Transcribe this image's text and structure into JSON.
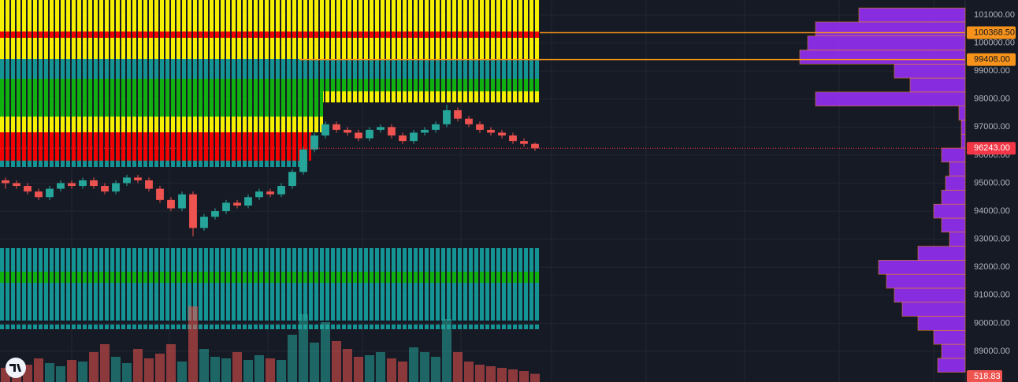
{
  "chart_data": {
    "type": "candlestick",
    "ylim": [
      87904,
      101534
    ],
    "yticks": [
      {
        "value": 89000,
        "label": "89000.00"
      },
      {
        "value": 90000,
        "label": "90000.00"
      },
      {
        "value": 91000,
        "label": "91000.00"
      },
      {
        "value": 92000,
        "label": "92000.00"
      },
      {
        "value": 93000,
        "label": "93000.00"
      },
      {
        "value": 94000,
        "label": "94000.00"
      },
      {
        "value": 95000,
        "label": "95000.00"
      },
      {
        "value": 96000,
        "label": "96000.00"
      },
      {
        "value": 97000,
        "label": "97000.00"
      },
      {
        "value": 98000,
        "label": "98000.00"
      },
      {
        "value": 99000,
        "label": "99000.00"
      },
      {
        "value": 100000,
        "label": "100000.00"
      },
      {
        "value": 101000,
        "label": "101000.00"
      }
    ],
    "grid": true,
    "up_color": "#26a69a",
    "down_color": "#ef5350",
    "open": [
      95100,
      95000,
      94900,
      94700,
      94500,
      94800,
      95000,
      94900,
      95100,
      94900,
      94700,
      95000,
      95200,
      95100,
      94800,
      94400,
      94100,
      94600,
      93400,
      93800,
      94000,
      94300,
      94200,
      94500,
      94700,
      94600,
      94900,
      95400,
      96200,
      96700,
      97100,
      96900,
      96800,
      96600,
      96900,
      97000,
      96700,
      96500,
      96800,
      96900,
      97100,
      97600,
      97300,
      97100,
      96900,
      96800,
      96700,
      96500,
      96400
    ],
    "high": [
      95200,
      95100,
      95000,
      94800,
      94900,
      95100,
      95100,
      95200,
      95200,
      95000,
      95100,
      95300,
      95300,
      95200,
      94900,
      94500,
      94700,
      94700,
      93900,
      94100,
      94400,
      94400,
      94600,
      94800,
      94800,
      95000,
      95500,
      96300,
      96800,
      97200,
      97200,
      97000,
      96900,
      97000,
      97100,
      97100,
      96800,
      96900,
      97000,
      97200,
      97800,
      97700,
      97400,
      97200,
      97000,
      96900,
      96800,
      96600,
      96450
    ],
    "low": [
      94800,
      94800,
      94600,
      94400,
      94400,
      94700,
      94800,
      94800,
      94800,
      94600,
      94600,
      94900,
      95000,
      94700,
      94300,
      94000,
      94000,
      93100,
      93300,
      93700,
      93900,
      94100,
      94100,
      94400,
      94500,
      94500,
      94800,
      95300,
      96100,
      96600,
      96800,
      96700,
      96500,
      96500,
      96800,
      96600,
      96400,
      96400,
      96700,
      96800,
      97000,
      97200,
      97000,
      96800,
      96700,
      96600,
      96400,
      96300,
      96150
    ],
    "close": [
      95000,
      94900,
      94700,
      94500,
      94800,
      95000,
      94900,
      95100,
      94900,
      94700,
      95000,
      95200,
      95100,
      94800,
      94400,
      94100,
      94600,
      93400,
      93800,
      94000,
      94300,
      94200,
      94500,
      94700,
      94600,
      94900,
      95400,
      96200,
      96700,
      97100,
      96900,
      96800,
      96600,
      96900,
      97000,
      96700,
      96500,
      96800,
      96900,
      97100,
      97600,
      97300,
      97100,
      96900,
      96800,
      96700,
      96500,
      96400,
      96243
    ],
    "volume": [
      900,
      1300,
      1100,
      1500,
      1200,
      1000,
      1400,
      1300,
      1900,
      2400,
      1600,
      1200,
      2100,
      1500,
      1800,
      2400,
      1300,
      4800,
      2100,
      1600,
      1500,
      1900,
      1400,
      1700,
      1500,
      1400,
      3000,
      4300,
      2500,
      3800,
      2600,
      2100,
      1600,
      1700,
      1900,
      1500,
      1300,
      2200,
      1900,
      1600,
      4000,
      1900,
      1300,
      1100,
      1000,
      900,
      800,
      700,
      518.83
    ],
    "volume_labels": {
      "48": "518.83"
    },
    "volume_lim": [
      0,
      6000
    ],
    "lines": [
      {
        "value": 100368.5,
        "label": "100368.50",
        "color": "#f7931a"
      },
      {
        "value": 99408,
        "label": "99408.00",
        "color": "#f7931a"
      }
    ],
    "last_price": {
      "value": 96243,
      "label": "96243.00",
      "color": "#f23645"
    },
    "profile": {
      "color": "#9b30ff",
      "edge_color": "#f7931a",
      "prices": [
        88500,
        89000,
        89500,
        90000,
        90500,
        91000,
        91500,
        92000,
        92500,
        93000,
        93500,
        94000,
        94500,
        95000,
        95500,
        96000,
        96500,
        97000,
        97500,
        98000,
        98500,
        99000,
        99500,
        100000,
        100500,
        101000
      ],
      "values": [
        35,
        30,
        40,
        60,
        80,
        90,
        100,
        110,
        60,
        20,
        30,
        40,
        30,
        25,
        20,
        30,
        5,
        5,
        8,
        190,
        70,
        90,
        210,
        200,
        190,
        135
      ],
      "xlim": [
        0,
        200
      ]
    }
  }
}
